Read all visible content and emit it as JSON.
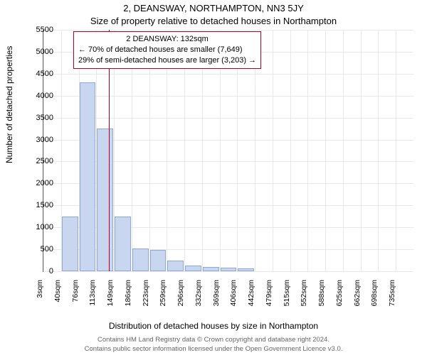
{
  "title_main": "2, DEANSWAY, NORTHAMPTON, NN3 5JY",
  "title_sub": "Size of property relative to detached houses in Northampton",
  "ylabel": "Number of detached properties",
  "xlabel": "Distribution of detached houses by size in Northampton",
  "footer_line1": "Contains HM Land Registry data © Crown copyright and database right 2024.",
  "footer_line2": "Contains public sector information licensed under the Open Government Licence v3.0.",
  "chart": {
    "type": "histogram",
    "background_color": "#ffffff",
    "grid_color": "#e8e8e8",
    "axis_color": "#666666",
    "bar_fill": "#c8d6ef",
    "bar_stroke": "#8fa8d4",
    "ref_line_color": "#b00020",
    "annot_border_color": "#b00020",
    "ylim": [
      0,
      5500
    ],
    "ytick_step": 500,
    "yticks": [
      0,
      500,
      1000,
      1500,
      2000,
      2500,
      3000,
      3500,
      4000,
      4500,
      5000,
      5500
    ],
    "xticks": [
      "3sqm",
      "40sqm",
      "76sqm",
      "113sqm",
      "149sqm",
      "186sqm",
      "223sqm",
      "259sqm",
      "296sqm",
      "332sqm",
      "369sqm",
      "406sqm",
      "442sqm",
      "479sqm",
      "515sqm",
      "552sqm",
      "588sqm",
      "625sqm",
      "662sqm",
      "698sqm",
      "735sqm"
    ],
    "bars": [
      {
        "x_index": 0,
        "value": 0
      },
      {
        "x_index": 1,
        "value": 1250
      },
      {
        "x_index": 2,
        "value": 4300
      },
      {
        "x_index": 3,
        "value": 3250
      },
      {
        "x_index": 4,
        "value": 1250
      },
      {
        "x_index": 5,
        "value": 520
      },
      {
        "x_index": 6,
        "value": 480
      },
      {
        "x_index": 7,
        "value": 250
      },
      {
        "x_index": 8,
        "value": 130
      },
      {
        "x_index": 9,
        "value": 100
      },
      {
        "x_index": 10,
        "value": 80
      },
      {
        "x_index": 11,
        "value": 60
      }
    ],
    "ref_line_x_value": 132,
    "x_domain": [
      3,
      735
    ],
    "annotation": {
      "line1": "2 DEANSWAY: 132sqm",
      "line2": "← 70% of detached houses are smaller (7,649)",
      "line3": "29% of semi-detached houses are larger (3,203) →"
    }
  }
}
